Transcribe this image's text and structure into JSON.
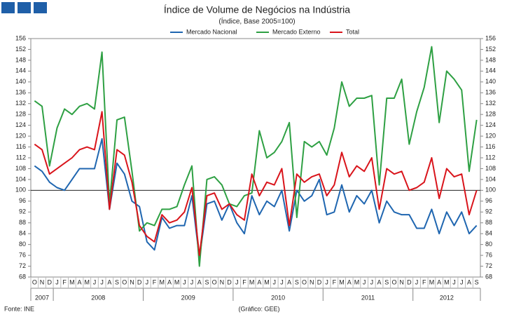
{
  "chart_data": {
    "type": "line",
    "title": "Índice de Volume de Negócios na Indústria",
    "subtitle": "(Índice, Base 2005=100)",
    "source": "Fonte: INE",
    "credit": "(Gráfico: GEE)",
    "categories": [
      "O",
      "N",
      "D",
      "J",
      "F",
      "M",
      "A",
      "M",
      "J",
      "J",
      "A",
      "S",
      "O",
      "N",
      "D",
      "J",
      "F",
      "M",
      "A",
      "M",
      "J",
      "J",
      "A",
      "S",
      "O",
      "N",
      "D",
      "J",
      "F",
      "M",
      "A",
      "M",
      "J",
      "J",
      "A",
      "S",
      "O",
      "N",
      "D",
      "J",
      "F",
      "M",
      "A",
      "M",
      "J",
      "J",
      "A",
      "S",
      "O",
      "N",
      "D",
      "J",
      "F",
      "M",
      "A",
      "M",
      "J",
      "J",
      "A",
      "S"
    ],
    "years": [
      "2007",
      "2008",
      "2009",
      "2010",
      "2011",
      "2012"
    ],
    "series": [
      {
        "name": "Mercado Nacional",
        "color": "#1f66b0",
        "values": [
          109,
          107,
          103,
          101,
          100,
          104,
          108,
          108,
          108,
          119,
          93,
          110,
          106,
          96,
          94,
          81,
          78,
          90,
          86,
          87,
          87,
          98,
          75,
          95,
          96,
          89,
          95,
          88,
          84,
          98,
          91,
          96,
          94,
          100,
          85,
          100,
          96,
          98,
          104,
          91,
          92,
          102,
          92,
          98,
          95,
          100,
          88,
          96,
          92,
          91,
          91,
          86,
          86,
          93,
          84,
          92,
          87,
          92,
          84,
          87
        ]
      },
      {
        "name": "Mercado Externo",
        "color": "#2ea043",
        "values": [
          133,
          131,
          109,
          123,
          130,
          128,
          131,
          132,
          130,
          151,
          95,
          126,
          127,
          107,
          85,
          88,
          87,
          93,
          93,
          94,
          102,
          109,
          72,
          104,
          105,
          102,
          95,
          94,
          98,
          99,
          122,
          112,
          114,
          118,
          125,
          90,
          118,
          116,
          118,
          113,
          123,
          140,
          131,
          134,
          134,
          135,
          102,
          134,
          134,
          141,
          117,
          129,
          138,
          153,
          125,
          144,
          141,
          137,
          107,
          126
        ]
      },
      {
        "name": "Total",
        "color": "#d9141b",
        "values": [
          117,
          115,
          106,
          108,
          110,
          112,
          115,
          116,
          115,
          129,
          93,
          115,
          113,
          103,
          87,
          83,
          81,
          91,
          88,
          89,
          92,
          101,
          76,
          98,
          99,
          93,
          95,
          91,
          89,
          106,
          98,
          103,
          102,
          108,
          87,
          106,
          103,
          105,
          106,
          98,
          102,
          114,
          105,
          109,
          107,
          112,
          93,
          108,
          106,
          107,
          100,
          101,
          103,
          112,
          97,
          108,
          105,
          106,
          91,
          100
        ]
      }
    ],
    "reference_line": 100,
    "ylim": [
      68,
      156
    ],
    "yticks": [
      68,
      72,
      76,
      80,
      84,
      88,
      92,
      96,
      100,
      104,
      108,
      112,
      116,
      120,
      124,
      128,
      132,
      136,
      140,
      144,
      148,
      152,
      156
    ],
    "y2lim": [
      68,
      156
    ],
    "y2ticks": [
      68,
      72,
      76,
      80,
      84,
      88,
      92,
      96,
      100,
      104,
      108,
      112,
      116,
      120,
      124,
      128,
      132,
      136,
      140,
      144,
      148,
      152,
      156
    ],
    "legend": "top"
  }
}
